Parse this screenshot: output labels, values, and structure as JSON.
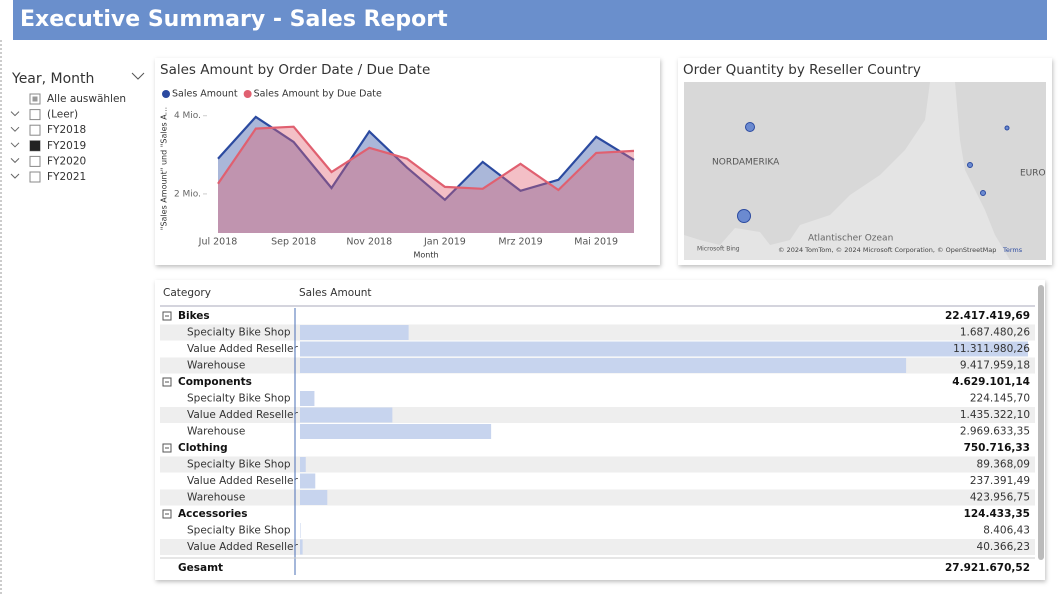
{
  "header": {
    "title": "Executive Summary - Sales Report"
  },
  "slicer": {
    "title": "Year, Month",
    "items": [
      {
        "label": "Alle auswählen",
        "state": "partial"
      },
      {
        "label": "(Leer)",
        "state": "unchecked"
      },
      {
        "label": "FY2018",
        "state": "unchecked"
      },
      {
        "label": "FY2019",
        "state": "checked"
      },
      {
        "label": "FY2020",
        "state": "unchecked"
      },
      {
        "label": "FY2021",
        "state": "unchecked"
      }
    ]
  },
  "chart_data": {
    "type": "line",
    "title": "Sales Amount by Order Date / Due Date",
    "x_label": "Month",
    "y_label": "\"Sales Amount\" und \"Sales A...",
    "categories": [
      "Jul 2018",
      null,
      "Sep 2018",
      null,
      "Nov 2018",
      null,
      "Jan 2019",
      null,
      "Mrz 2019",
      null,
      "Mai 2019",
      null
    ],
    "series": [
      {
        "name": "Sales Amount",
        "color": "#2b4aa0",
        "values": [
          2900000,
          3970000,
          3330000,
          2150000,
          3600000,
          2670000,
          1850000,
          2820000,
          2080000,
          2360000,
          3460000,
          2870000
        ]
      },
      {
        "name": "Sales Amount by Due Date",
        "color": "#e06070",
        "values": [
          2260000,
          3670000,
          3720000,
          2560000,
          3180000,
          2900000,
          2180000,
          2130000,
          2770000,
          2100000,
          3050000,
          3100000
        ]
      }
    ],
    "ylim": [
      1000000,
      4300000
    ],
    "yticks": [
      {
        "value": 2000000,
        "label": "2 Mio."
      },
      {
        "value": 4000000,
        "label": "4 Mio."
      }
    ],
    "area": true
  },
  "map": {
    "title": "Order Quantity by Reseller Country",
    "labels": [
      "NORDAMERIKA",
      "Atlantischer Ozean",
      "EUROPA"
    ],
    "provider": "Microsoft Bing",
    "attribution": "© 2024 TomTom, © 2024 Microsoft Corporation, © OpenStreetMap",
    "terms": "Terms"
  },
  "table": {
    "columns": [
      "Category",
      "Sales Amount"
    ],
    "groups": [
      {
        "name": "Bikes",
        "total": "22.417.419,69",
        "rows": [
          {
            "name": "Specialty Bike Shop",
            "value": {
              "value": 1687480.26,
              "label": "1.687.480,26"
            }
          },
          {
            "name": "Value Added Reseller",
            "value": {
              "value": 11311980.26,
              "label": "11.311.980,26"
            }
          },
          {
            "name": "Warehouse",
            "value": {
              "value": 9417959.18,
              "label": "9.417.959,18"
            }
          }
        ]
      },
      {
        "name": "Components",
        "total": "4.629.101,14",
        "rows": [
          {
            "name": "Specialty Bike Shop",
            "value": {
              "value": 224145.7,
              "label": "224.145,70"
            }
          },
          {
            "name": "Value Added Reseller",
            "value": {
              "value": 1435322.1,
              "label": "1.435.322,10"
            }
          },
          {
            "name": "Warehouse",
            "value": {
              "value": 2969633.35,
              "label": "2.969.633,35"
            }
          }
        ]
      },
      {
        "name": "Clothing",
        "total": "750.716,33",
        "rows": [
          {
            "name": "Specialty Bike Shop",
            "value": {
              "value": 89368.09,
              "label": "89.368,09"
            }
          },
          {
            "name": "Value Added Reseller",
            "value": {
              "value": 237391.49,
              "label": "237.391,49"
            }
          },
          {
            "name": "Warehouse",
            "value": {
              "value": 423956.75,
              "label": "423.956,75"
            }
          }
        ]
      },
      {
        "name": "Accessories",
        "total": "124.433,35",
        "rows": [
          {
            "name": "Specialty Bike Shop",
            "value": {
              "value": 8406.43,
              "label": "8.406,43"
            }
          },
          {
            "name": "Value Added Reseller",
            "value": {
              "value": 40366.23,
              "label": "40.366,23"
            }
          }
        ]
      }
    ],
    "grand_total": {
      "name": "Gesamt",
      "value": "27.921.670,52"
    }
  }
}
